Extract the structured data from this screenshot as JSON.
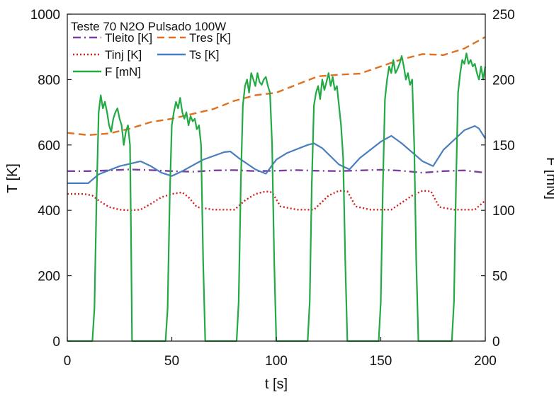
{
  "chart_data": {
    "type": "line",
    "title": "Teste 70 N2O Pulsado 100W",
    "xlabel": "t [s]",
    "ylabel": "T [K]",
    "y2label": "F [mN]",
    "xlim": [
      0,
      200
    ],
    "ylim": [
      0,
      1000
    ],
    "y2lim": [
      0,
      250
    ],
    "xticks": [
      "0",
      "50",
      "100",
      "150",
      "200"
    ],
    "yticks": [
      "0",
      "200",
      "400",
      "600",
      "800",
      "1000"
    ],
    "y2ticks": [
      "0",
      "50",
      "100",
      "150",
      "200",
      "250"
    ],
    "grid": false,
    "legend_position": "top-left",
    "series": [
      {
        "name": "Tleito [K]",
        "axis": "left",
        "color": "#7a3fa0",
        "style": "dashdot",
        "x": [
          0,
          10,
          20,
          30,
          40,
          50,
          60,
          70,
          80,
          90,
          100,
          110,
          120,
          130,
          140,
          150,
          160,
          170,
          180,
          190,
          200
        ],
        "y": [
          520,
          520,
          522,
          525,
          523,
          520,
          518,
          522,
          523,
          520,
          521,
          523,
          521,
          520,
          522,
          524,
          521,
          515,
          520,
          522,
          515
        ]
      },
      {
        "name": "Tres [K]",
        "axis": "left",
        "color": "#e07020",
        "style": "dashed",
        "x": [
          0,
          10,
          20,
          30,
          40,
          50,
          60,
          70,
          80,
          90,
          100,
          110,
          120,
          130,
          140,
          150,
          160,
          170,
          180,
          190,
          200
        ],
        "y": [
          637,
          630,
          635,
          650,
          670,
          680,
          695,
          710,
          735,
          752,
          760,
          785,
          810,
          815,
          818,
          840,
          862,
          878,
          875,
          895,
          930
        ]
      },
      {
        "name": "Tinj [K]",
        "axis": "left",
        "color": "#d02020",
        "style": "dotted",
        "x": [
          0,
          8,
          12,
          15,
          20,
          25,
          30,
          35,
          40,
          45,
          50,
          55,
          58,
          62,
          70,
          80,
          85,
          90,
          95,
          98,
          102,
          110,
          118,
          125,
          130,
          134,
          138,
          145,
          155,
          165,
          170,
          174,
          178,
          185,
          195,
          200
        ],
        "y": [
          450,
          450,
          445,
          430,
          410,
          402,
          400,
          402,
          420,
          440,
          450,
          455,
          440,
          410,
          402,
          402,
          430,
          450,
          458,
          455,
          412,
          402,
          402,
          445,
          460,
          458,
          412,
          402,
          402,
          445,
          460,
          458,
          410,
          402,
          402,
          430
        ]
      },
      {
        "name": "Ts [K]",
        "axis": "left",
        "color": "#4a7ec0",
        "style": "solid",
        "x": [
          0,
          10,
          15,
          25,
          35,
          40,
          45,
          50,
          55,
          65,
          75,
          78,
          82,
          90,
          95,
          100,
          105,
          115,
          118,
          122,
          130,
          135,
          140,
          150,
          155,
          160,
          170,
          175,
          180,
          190,
          195,
          197,
          200
        ],
        "y": [
          483,
          483,
          510,
          535,
          550,
          535,
          515,
          505,
          520,
          555,
          578,
          580,
          560,
          525,
          512,
          555,
          575,
          600,
          605,
          590,
          540,
          525,
          560,
          610,
          628,
          605,
          550,
          535,
          585,
          645,
          658,
          650,
          620
        ]
      },
      {
        "name": "F [mN]",
        "axis": "right",
        "color": "#22aa44",
        "style": "solid",
        "x": [
          0,
          12,
          13,
          14,
          15,
          16,
          17,
          18,
          19,
          20,
          21,
          22,
          23,
          24,
          25,
          26,
          27,
          28,
          29,
          30,
          30.5,
          31,
          32,
          47,
          48,
          49,
          50,
          51,
          52,
          53,
          54,
          55,
          56,
          57,
          58,
          59,
          60,
          61,
          62,
          63,
          64,
          65,
          66,
          81,
          82,
          83,
          84,
          85,
          86,
          87,
          88,
          89,
          90,
          91,
          92,
          93,
          94,
          95,
          96,
          97,
          98,
          99,
          100,
          115,
          116,
          117,
          118,
          119,
          120,
          121,
          122,
          123,
          124,
          125,
          126,
          127,
          128,
          129,
          130,
          131,
          132,
          133,
          134,
          149,
          150,
          151,
          152,
          153,
          154,
          155,
          156,
          157,
          158,
          159,
          160,
          161,
          162,
          163,
          164,
          165,
          166,
          167,
          168,
          184,
          185,
          186,
          187,
          188,
          189,
          190,
          191,
          192,
          193,
          194,
          195,
          196,
          197,
          198,
          199,
          200
        ],
        "y": [
          0,
          0,
          25,
          110,
          175,
          188,
          178,
          183,
          175,
          165,
          160,
          170,
          175,
          178,
          170,
          165,
          150,
          160,
          165,
          150,
          80,
          0,
          0,
          0,
          25,
          110,
          165,
          175,
          183,
          178,
          186,
          175,
          170,
          175,
          165,
          172,
          168,
          170,
          162,
          165,
          150,
          60,
          0,
          0,
          30,
          120,
          180,
          195,
          200,
          190,
          205,
          200,
          195,
          205,
          198,
          196,
          200,
          202,
          195,
          190,
          150,
          60,
          0,
          0,
          30,
          120,
          180,
          190,
          195,
          185,
          200,
          192,
          198,
          205,
          195,
          202,
          192,
          195,
          180,
          165,
          140,
          60,
          0,
          0,
          30,
          120,
          185,
          200,
          210,
          205,
          215,
          205,
          208,
          212,
          218,
          210,
          200,
          205,
          196,
          200,
          150,
          60,
          0,
          0,
          30,
          120,
          190,
          205,
          215,
          212,
          220,
          212,
          215,
          210,
          212,
          205,
          200,
          210,
          200,
          210
        ]
      }
    ]
  }
}
